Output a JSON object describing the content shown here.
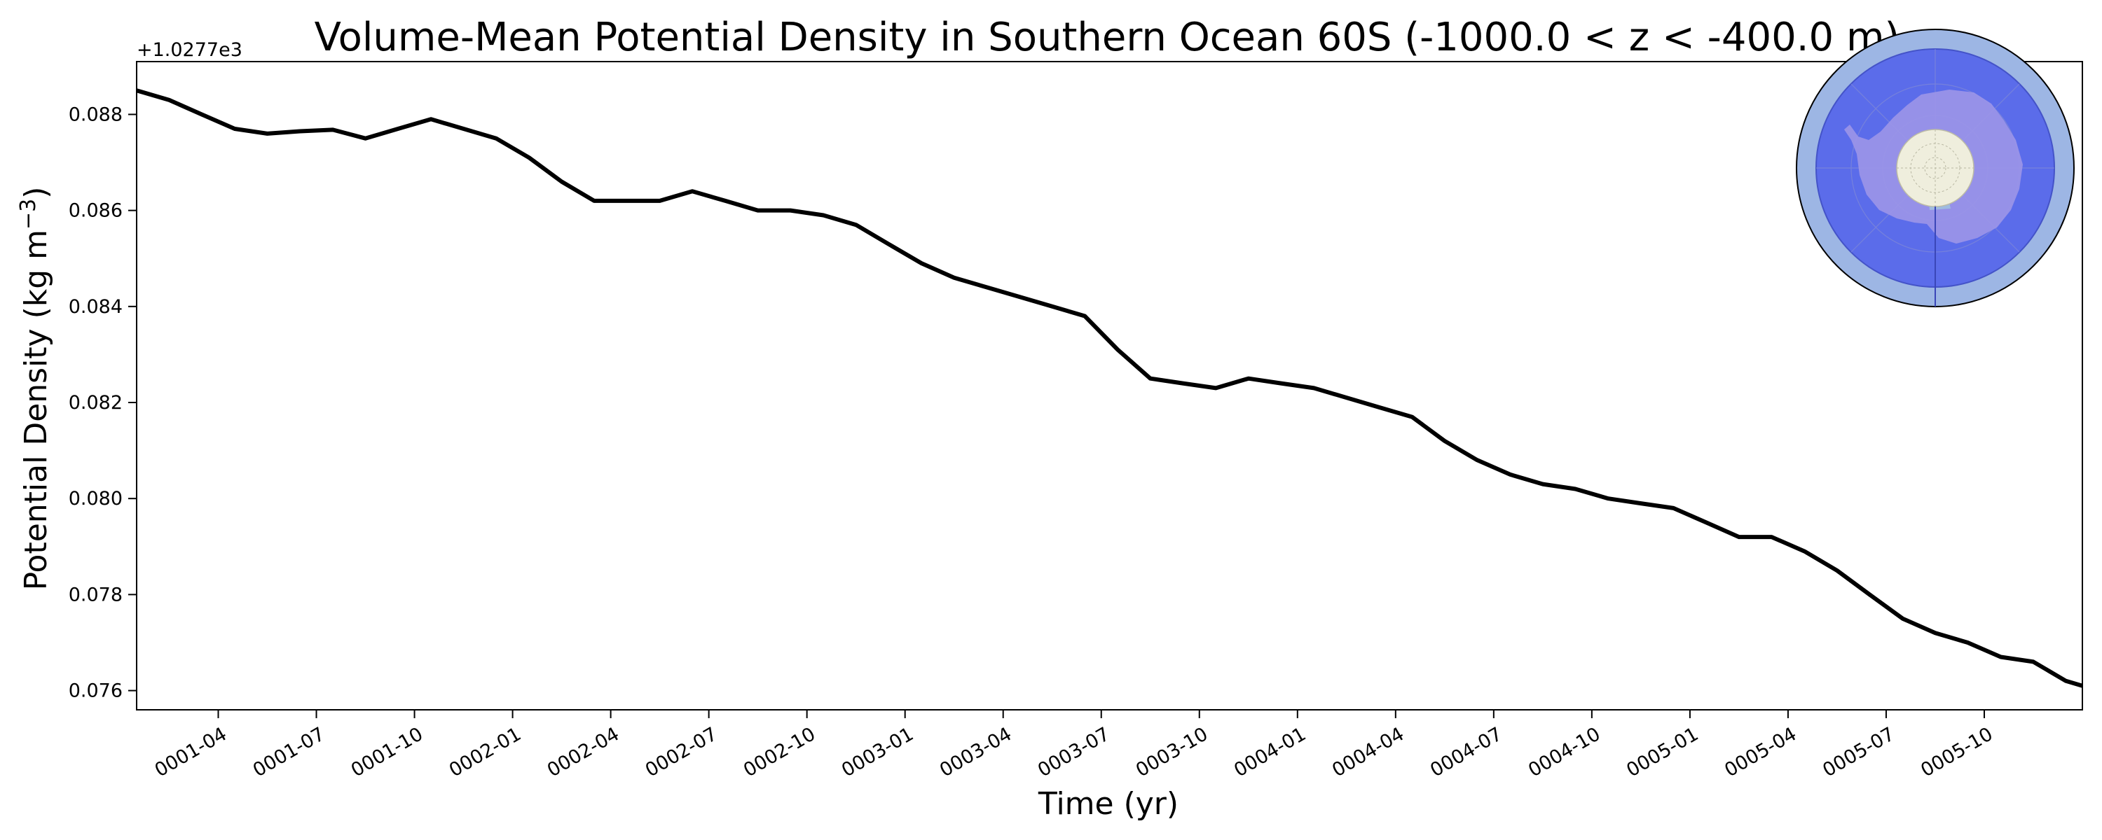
{
  "chart_data": {
    "type": "line",
    "title": "Volume-Mean Potential Density in Southern Ocean 60S (-1000.0 < z < -400.0 m)",
    "xlabel": "Time (yr)",
    "ylabel_main": "Potential Density (kg m",
    "ylabel_sup": "−3",
    "ylabel_close": ")",
    "y_offset_text": "+1.0277e3",
    "xlim": [
      0.042,
      5.0
    ],
    "ylim": [
      0.0756,
      0.0891
    ],
    "x_ticks": [
      0.25,
      0.5,
      0.75,
      1.0,
      1.25,
      1.5,
      1.75,
      2.0,
      2.25,
      2.5,
      2.75,
      3.0,
      3.25,
      3.5,
      3.75,
      4.0,
      4.25,
      4.5,
      4.75
    ],
    "x_tick_labels": [
      "0001-04",
      "0001-07",
      "0001-10",
      "0002-01",
      "0002-04",
      "0002-07",
      "0002-10",
      "0003-01",
      "0003-04",
      "0003-07",
      "0003-10",
      "0004-01",
      "0004-04",
      "0004-07",
      "0004-10",
      "0005-01",
      "0005-04",
      "0005-07",
      "0005-10"
    ],
    "y_ticks": [
      0.076,
      0.078,
      0.08,
      0.082,
      0.084,
      0.086,
      0.088
    ],
    "y_tick_labels": [
      "0.076",
      "0.078",
      "0.080",
      "0.082",
      "0.084",
      "0.086",
      "0.088"
    ],
    "series": [
      {
        "name": "potential density",
        "color": "#000000",
        "x": [
          0.042,
          0.125,
          0.208,
          0.292,
          0.375,
          0.458,
          0.542,
          0.625,
          0.708,
          0.792,
          0.875,
          0.958,
          1.042,
          1.125,
          1.208,
          1.292,
          1.375,
          1.458,
          1.542,
          1.625,
          1.708,
          1.792,
          1.875,
          1.958,
          2.042,
          2.125,
          2.208,
          2.292,
          2.375,
          2.458,
          2.542,
          2.625,
          2.708,
          2.792,
          2.875,
          2.958,
          3.042,
          3.125,
          3.208,
          3.292,
          3.375,
          3.458,
          3.542,
          3.625,
          3.708,
          3.792,
          3.875,
          3.958,
          4.042,
          4.125,
          4.208,
          4.292,
          4.375,
          4.458,
          4.542,
          4.625,
          4.708,
          4.792,
          4.875,
          4.958,
          5.0
        ],
        "values": [
          0.0885,
          0.0883,
          0.088,
          0.0877,
          0.0876,
          0.08765,
          0.08768,
          0.0875,
          0.0877,
          0.0879,
          0.0877,
          0.0875,
          0.0871,
          0.0866,
          0.0862,
          0.0862,
          0.0862,
          0.0864,
          0.0862,
          0.086,
          0.086,
          0.0859,
          0.0857,
          0.0853,
          0.0849,
          0.0846,
          0.0844,
          0.0842,
          0.084,
          0.0838,
          0.0831,
          0.0825,
          0.0824,
          0.0823,
          0.0825,
          0.0824,
          0.0823,
          0.0821,
          0.0819,
          0.0817,
          0.0812,
          0.0808,
          0.0805,
          0.0803,
          0.0802,
          0.08,
          0.0799,
          0.0798,
          0.0795,
          0.0792,
          0.0792,
          0.0789,
          0.0785,
          0.078,
          0.0775,
          0.0772,
          0.077,
          0.0767,
          0.0766,
          0.0762,
          0.0761
        ]
      }
    ],
    "inset_map": {
      "region": "Southern Ocean 60S",
      "ocean_color": "#5b6cea",
      "outer_color": "#9db6e4",
      "land_color": "#9a93e8",
      "pole_color": "#efeedd"
    }
  }
}
